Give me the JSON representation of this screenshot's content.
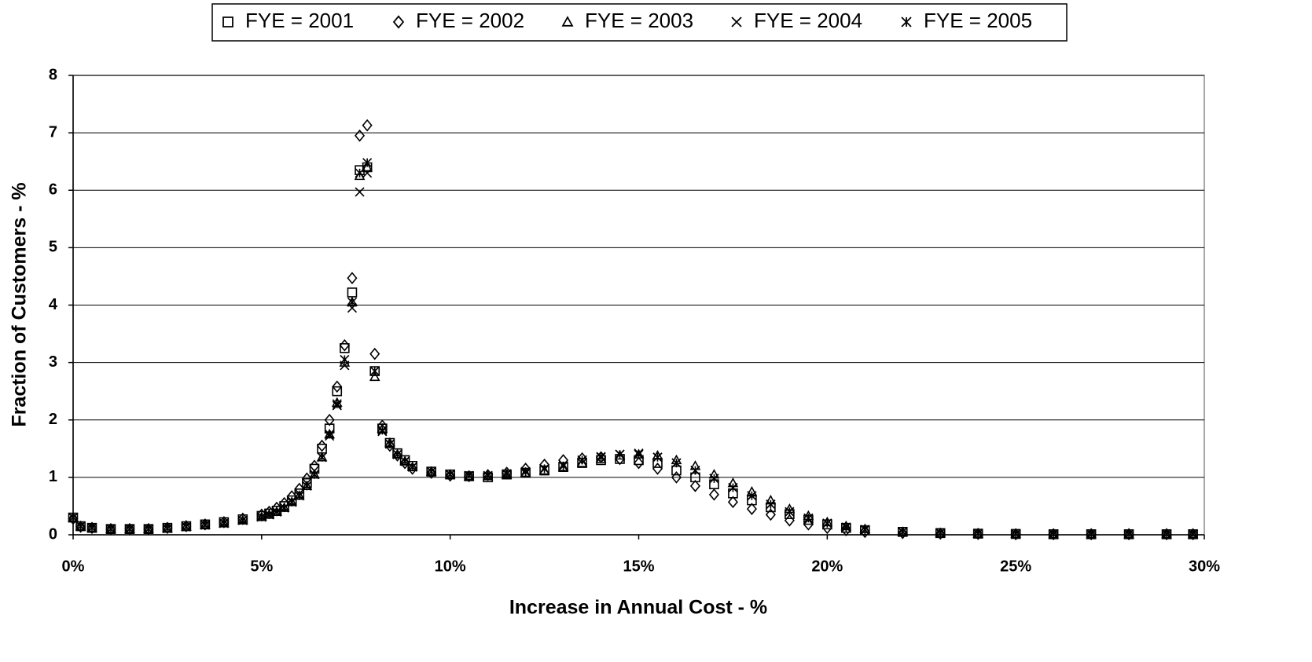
{
  "chart_data": {
    "type": "scatter",
    "xlabel": "Increase in Annual Cost - %",
    "ylabel": "Fraction of Customers - %",
    "x": [
      0,
      0.2,
      0.5,
      1,
      1.5,
      2,
      2.5,
      3,
      3.5,
      4,
      4.5,
      5,
      5.2,
      5.4,
      5.6,
      5.8,
      6,
      6.2,
      6.4,
      6.6,
      6.8,
      7,
      7.2,
      7.4,
      7.6,
      7.8,
      8,
      8.2,
      8.4,
      8.6,
      8.8,
      9,
      9.5,
      10,
      10.5,
      11,
      11.5,
      12,
      12.5,
      13,
      13.5,
      14,
      14.5,
      15,
      15.5,
      16,
      16.5,
      17,
      17.5,
      18,
      18.5,
      19,
      19.5,
      20,
      20.5,
      21,
      22,
      23,
      24,
      25,
      26,
      27,
      28,
      29,
      29.7
    ],
    "series": [
      {
        "name": "FYE = 2001",
        "marker": "square",
        "color": "#000000",
        "values": [
          0.3,
          0.15,
          0.12,
          0.1,
          0.1,
          0.1,
          0.12,
          0.15,
          0.18,
          0.22,
          0.27,
          0.33,
          0.37,
          0.42,
          0.5,
          0.6,
          0.72,
          0.9,
          1.15,
          1.5,
          1.85,
          2.5,
          3.25,
          4.22,
          6.35,
          6.4,
          2.85,
          1.85,
          1.6,
          1.42,
          1.3,
          1.2,
          1.1,
          1.05,
          1.02,
          1.0,
          1.05,
          1.08,
          1.12,
          1.18,
          1.25,
          1.3,
          1.32,
          1.3,
          1.25,
          1.12,
          1.0,
          0.88,
          0.72,
          0.6,
          0.48,
          0.36,
          0.26,
          0.18,
          0.12,
          0.08,
          0.05,
          0.03,
          0.02,
          0.015,
          0.01,
          0.01,
          0.01,
          0.01,
          0.01
        ]
      },
      {
        "name": "FYE = 2002",
        "marker": "diamond",
        "color": "#000000",
        "values": [
          0.28,
          0.14,
          0.12,
          0.1,
          0.1,
          0.1,
          0.12,
          0.15,
          0.18,
          0.22,
          0.28,
          0.35,
          0.4,
          0.47,
          0.55,
          0.67,
          0.8,
          0.98,
          1.2,
          1.55,
          2.0,
          2.58,
          3.3,
          4.47,
          6.95,
          7.13,
          3.15,
          1.9,
          1.55,
          1.38,
          1.25,
          1.15,
          1.08,
          1.03,
          1.02,
          1.04,
          1.08,
          1.15,
          1.22,
          1.3,
          1.33,
          1.35,
          1.32,
          1.25,
          1.15,
          1.0,
          0.85,
          0.7,
          0.57,
          0.45,
          0.35,
          0.25,
          0.18,
          0.12,
          0.08,
          0.05,
          0.03,
          0.02,
          0.015,
          0.01,
          0.01,
          0.01,
          0.01,
          0.01,
          0.01
        ]
      },
      {
        "name": "FYE = 2003",
        "marker": "triangle",
        "color": "#000000",
        "values": [
          0.3,
          0.15,
          0.12,
          0.1,
          0.1,
          0.1,
          0.11,
          0.14,
          0.17,
          0.2,
          0.25,
          0.31,
          0.35,
          0.4,
          0.47,
          0.57,
          0.68,
          0.85,
          1.05,
          1.35,
          1.75,
          2.3,
          3.0,
          4.05,
          6.25,
          6.4,
          2.75,
          1.85,
          1.6,
          1.4,
          1.28,
          1.18,
          1.1,
          1.05,
          1.02,
          1.02,
          1.05,
          1.08,
          1.12,
          1.18,
          1.25,
          1.32,
          1.38,
          1.4,
          1.38,
          1.3,
          1.2,
          1.05,
          0.9,
          0.75,
          0.6,
          0.45,
          0.33,
          0.22,
          0.15,
          0.1,
          0.05,
          0.03,
          0.02,
          0.015,
          0.01,
          0.01,
          0.01,
          0.01,
          0.01
        ]
      },
      {
        "name": "FYE = 2004",
        "marker": "x",
        "color": "#000000",
        "values": [
          0.3,
          0.15,
          0.12,
          0.1,
          0.1,
          0.1,
          0.11,
          0.14,
          0.17,
          0.2,
          0.25,
          0.31,
          0.35,
          0.4,
          0.47,
          0.57,
          0.68,
          0.85,
          1.05,
          1.35,
          1.72,
          2.25,
          2.95,
          3.95,
          5.97,
          6.3,
          2.85,
          1.8,
          1.58,
          1.4,
          1.28,
          1.18,
          1.1,
          1.05,
          1.03,
          1.03,
          1.06,
          1.1,
          1.15,
          1.2,
          1.3,
          1.35,
          1.4,
          1.42,
          1.35,
          1.25,
          1.12,
          0.98,
          0.82,
          0.68,
          0.53,
          0.4,
          0.29,
          0.2,
          0.13,
          0.09,
          0.05,
          0.03,
          0.02,
          0.015,
          0.01,
          0.01,
          0.01,
          0.01,
          0.01
        ]
      },
      {
        "name": "FYE = 2005",
        "marker": "asterisk",
        "color": "#000000",
        "values": [
          0.3,
          0.15,
          0.12,
          0.1,
          0.1,
          0.1,
          0.11,
          0.14,
          0.17,
          0.2,
          0.25,
          0.31,
          0.35,
          0.4,
          0.47,
          0.57,
          0.68,
          0.85,
          1.05,
          1.35,
          1.75,
          2.28,
          3.05,
          4.05,
          6.3,
          6.48,
          2.85,
          1.82,
          1.58,
          1.4,
          1.28,
          1.18,
          1.1,
          1.05,
          1.03,
          1.03,
          1.06,
          1.1,
          1.15,
          1.2,
          1.3,
          1.36,
          1.4,
          1.4,
          1.35,
          1.25,
          1.12,
          0.98,
          0.82,
          0.68,
          0.53,
          0.4,
          0.29,
          0.2,
          0.13,
          0.09,
          0.05,
          0.03,
          0.02,
          0.015,
          0.01,
          0.01,
          0.01,
          0.01,
          0.01
        ]
      }
    ],
    "xlim": [
      0,
      30
    ],
    "xticks": [
      {
        "value": 0,
        "label": "0%"
      },
      {
        "value": 5,
        "label": "5%"
      },
      {
        "value": 10,
        "label": "10%"
      },
      {
        "value": 15,
        "label": "15%"
      },
      {
        "value": 20,
        "label": "20%"
      },
      {
        "value": 25,
        "label": "25%"
      },
      {
        "value": 30,
        "label": "30%"
      }
    ],
    "ylim": [
      0,
      8
    ],
    "yticks": [
      0,
      1,
      2,
      3,
      4,
      5,
      6,
      7,
      8
    ],
    "grid": true,
    "legend": "top"
  }
}
